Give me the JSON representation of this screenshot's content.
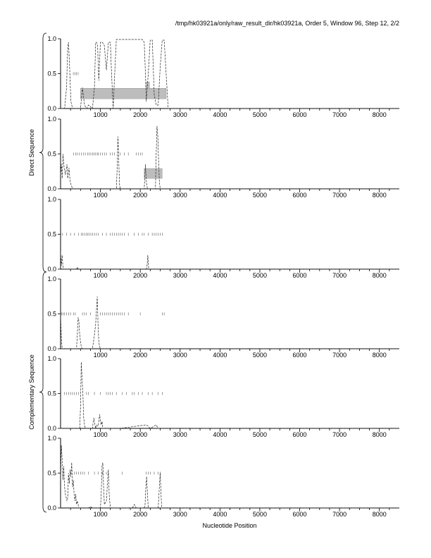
{
  "header": "/tmp/hk03921a/only/raw_result_dir/hk03921a, Order 5, Window 96, Step 12, 2/2",
  "xlabel": "Nucleotide Position",
  "group_labels": [
    "Direct Sequence",
    "Complementary Sequence"
  ],
  "colors": {
    "trace": "#222222",
    "hit_bar": "#bdbdbd",
    "marker": "#555555"
  },
  "chart_data": [
    {
      "type": "line",
      "group": "Direct Sequence",
      "xlim": [
        0,
        8500
      ],
      "ylim": [
        0,
        1
      ],
      "xticks": [
        1000,
        2000,
        3000,
        4000,
        5000,
        6000,
        7000,
        8000
      ],
      "yticks": [
        "0.0",
        "0.5",
        "1.0"
      ],
      "x": [
        0,
        100,
        150,
        180,
        200,
        230,
        260,
        300,
        350,
        450,
        500,
        550,
        600,
        650,
        700,
        800,
        850,
        880,
        900,
        930,
        960,
        1000,
        1050,
        1100,
        1150,
        1200,
        1250,
        1280,
        1320,
        1350,
        1400,
        1450,
        1500,
        1550,
        1600,
        1700,
        1800,
        1900,
        2000,
        2050,
        2100,
        2130,
        2150,
        2200,
        2250,
        2300,
        2350,
        2400,
        2450,
        2500,
        2550,
        2600,
        2700,
        8500
      ],
      "y": [
        0,
        0,
        0.3,
        0.9,
        0.95,
        0.55,
        0.1,
        0,
        0,
        0,
        0,
        0.3,
        0.05,
        0,
        0.05,
        0,
        0.3,
        0.95,
        0.95,
        0.9,
        0.4,
        0.95,
        0.95,
        0.9,
        0.55,
        0.95,
        0.95,
        0.5,
        0,
        0.4,
        0.99,
        0.99,
        0.99,
        0.99,
        0.99,
        0.99,
        0.99,
        0.99,
        0.99,
        0.99,
        0.95,
        0.5,
        0.1,
        0.5,
        0.98,
        0.98,
        0.2,
        0.05,
        0.05,
        0.6,
        0.98,
        0.98,
        0,
        0
      ],
      "hit_bars": [
        [
          500,
          2650,
          0.29,
          0.15
        ],
        [
          2150,
          2230,
          0.38,
          0.1
        ]
      ],
      "markers": {
        "y": 0.5,
        "x": [
          320,
          360,
          400,
          440
        ]
      }
    },
    {
      "type": "line",
      "group": "Direct Sequence",
      "xlim": [
        0,
        8500
      ],
      "ylim": [
        0,
        1
      ],
      "xticks": [
        1000,
        2000,
        3000,
        4000,
        5000,
        6000,
        7000,
        8000
      ],
      "yticks": [
        "0.0",
        "0.5",
        "1.0"
      ],
      "x": [
        0,
        20,
        40,
        60,
        90,
        120,
        160,
        180,
        210,
        240,
        270,
        300,
        1400,
        1420,
        1440,
        1460,
        1480,
        1500,
        2100,
        2130,
        2150,
        2180,
        2380,
        2400,
        2420,
        2440,
        2460,
        2480,
        2500,
        8500
      ],
      "y": [
        0.2,
        0.35,
        0.15,
        0.5,
        0.3,
        0.2,
        0.35,
        0.15,
        0.3,
        0.1,
        0.05,
        0,
        0,
        0.3,
        0.75,
        0.4,
        0.05,
        0,
        0,
        0.35,
        0.1,
        0,
        0,
        0.5,
        0.9,
        0.75,
        0.4,
        0.1,
        0,
        0
      ],
      "hit_bars": [
        [
          2100,
          2550,
          0.29,
          0.14
        ]
      ],
      "markers": {
        "y": 0.5,
        "x": [
          330,
          380,
          420,
          470,
          520,
          570,
          620,
          680,
          720,
          760,
          800,
          840,
          880,
          920,
          950,
          1000,
          1050,
          1100,
          1150,
          1250,
          1300,
          1350,
          1500,
          1600,
          1700,
          1900,
          1950,
          2000,
          2050
        ]
      }
    },
    {
      "type": "line",
      "group": "Direct Sequence",
      "xlim": [
        0,
        8500
      ],
      "ylim": [
        0,
        1
      ],
      "xticks": [
        1000,
        2000,
        3000,
        4000,
        5000,
        6000,
        7000,
        8000
      ],
      "yticks": [
        "0.0",
        "0.5",
        "1.0"
      ],
      "x": [
        0,
        20,
        40,
        60,
        80,
        100,
        400,
        420,
        440,
        2150,
        2170,
        2190,
        2210,
        8500
      ],
      "y": [
        0.25,
        0.05,
        0.2,
        0.03,
        0,
        0,
        0,
        0.03,
        0,
        0,
        0.05,
        0.2,
        0,
        0
      ],
      "hit_bars": [],
      "markers": {
        "y": 0.5,
        "x": [
          50,
          150,
          250,
          350,
          450,
          520,
          560,
          600,
          640,
          680,
          720,
          760,
          800,
          850,
          900,
          950,
          1050,
          1150,
          1250,
          1300,
          1350,
          1400,
          1450,
          1500,
          1550,
          1600,
          1700,
          1850,
          1950,
          2050,
          2100,
          2200,
          2300,
          2350,
          2400,
          2450,
          2500,
          2550
        ]
      }
    },
    {
      "type": "line",
      "group": "Complementary Sequence",
      "xlim": [
        0,
        8500
      ],
      "ylim": [
        0,
        1
      ],
      "xticks": [
        1000,
        2000,
        3000,
        4000,
        5000,
        6000,
        7000,
        8000
      ],
      "yticks": [
        "0.0",
        "0.5",
        "1.0"
      ],
      "x": [
        0,
        20,
        40,
        60,
        80,
        100,
        400,
        420,
        440,
        460,
        480,
        500,
        520,
        540,
        800,
        850,
        880,
        900,
        920,
        940,
        960,
        980,
        1000,
        8500
      ],
      "y": [
        0.5,
        0.15,
        0,
        0,
        0,
        0,
        0,
        0.2,
        0.45,
        0.4,
        0.2,
        0.1,
        0.03,
        0,
        0,
        0.2,
        0.35,
        0.55,
        0.75,
        0.35,
        0.1,
        0.03,
        0,
        0
      ],
      "hit_bars": [],
      "markers": {
        "y": 0.5,
        "x": [
          30,
          60,
          100,
          150,
          200,
          250,
          330,
          370,
          550,
          600,
          650,
          750,
          1000,
          1050,
          1100,
          1150,
          1200,
          1250,
          1300,
          1350,
          1400,
          1450,
          1500,
          1550,
          1600,
          1700,
          2000,
          2550,
          2600
        ]
      }
    },
    {
      "type": "line",
      "group": "Complementary Sequence",
      "xlim": [
        0,
        8500
      ],
      "ylim": [
        0,
        1
      ],
      "xticks": [
        1000,
        2000,
        3000,
        4000,
        5000,
        6000,
        7000,
        8000
      ],
      "yticks": [
        "0.0",
        "0.5",
        "1.0"
      ],
      "x": [
        0,
        480,
        500,
        520,
        540,
        560,
        580,
        600,
        620,
        800,
        820,
        840,
        860,
        880,
        900,
        940,
        960,
        980,
        1000,
        1020,
        1040,
        1060,
        1100,
        1500,
        2150,
        2200,
        2250,
        2400,
        2450,
        8500
      ],
      "y": [
        0,
        0,
        0.3,
        0.95,
        0.7,
        0.5,
        0.15,
        0.05,
        0,
        0,
        0.1,
        0.15,
        0.05,
        0,
        0.05,
        0.03,
        0.1,
        0.2,
        0.1,
        0.05,
        0.1,
        0,
        0,
        0,
        0.05,
        0.03,
        0,
        0.05,
        0,
        0
      ],
      "hit_bars": [],
      "markers": {
        "y": 0.5,
        "x": [
          100,
          150,
          200,
          250,
          300,
          350,
          400,
          450,
          650,
          700,
          850,
          1000,
          1150,
          1200,
          1250,
          1300,
          1400,
          1550,
          1650,
          1800,
          1850,
          1950,
          2050,
          2200,
          2300,
          2450,
          2550
        ]
      }
    },
    {
      "type": "line",
      "group": "Complementary Sequence",
      "xlim": [
        0,
        8500
      ],
      "ylim": [
        0,
        1
      ],
      "xticks": [
        1000,
        2000,
        3000,
        4000,
        5000,
        6000,
        7000,
        8000
      ],
      "yticks": [
        "0.0",
        "0.5",
        "1.0"
      ],
      "x": [
        0,
        20,
        40,
        60,
        80,
        100,
        120,
        140,
        160,
        180,
        200,
        220,
        240,
        260,
        280,
        300,
        320,
        340,
        360,
        380,
        400,
        420,
        440,
        460,
        500,
        700,
        750,
        800,
        1000,
        1020,
        1040,
        1060,
        1080,
        1100,
        1150,
        1180,
        1200,
        1220,
        1240,
        1260,
        1300,
        1800,
        1850,
        1900,
        2100,
        2120,
        2140,
        2160,
        2180,
        2200,
        2450,
        2480,
        2500,
        2520,
        2540,
        8500
      ],
      "y": [
        0.4,
        0.9,
        0.7,
        0.4,
        0.6,
        0.3,
        0.2,
        0.15,
        0.1,
        0.15,
        0.5,
        0.35,
        0.55,
        0.45,
        0.65,
        0.3,
        0.4,
        0.2,
        0.1,
        0.2,
        0.05,
        0.1,
        0.05,
        0,
        0,
        0,
        0.02,
        0,
        0,
        0.2,
        0.6,
        0.65,
        0.3,
        0.05,
        0.1,
        0.4,
        0.55,
        0.2,
        0.05,
        0,
        0,
        0,
        0.05,
        0,
        0,
        0.05,
        0.3,
        0.45,
        0.2,
        0,
        0,
        0.3,
        0.5,
        0.2,
        0,
        0
      ],
      "hit_bars": [],
      "markers": {
        "y": 0.5,
        "x": [
          350,
          400,
          450,
          500,
          550,
          600,
          700,
          850,
          950,
          1050,
          1150,
          1550,
          2150,
          2200,
          2250,
          2350,
          2450,
          2500
        ]
      }
    }
  ]
}
